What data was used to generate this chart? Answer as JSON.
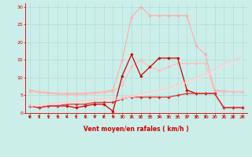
{
  "x": [
    0,
    1,
    2,
    3,
    4,
    5,
    6,
    7,
    8,
    9,
    10,
    11,
    12,
    13,
    14,
    15,
    16,
    17,
    18,
    19,
    20,
    21,
    22,
    23
  ],
  "series": [
    {
      "name": "light_pink_upper",
      "color": "#ffaaaa",
      "linewidth": 0.8,
      "marker": "D",
      "markersize": 1.8,
      "values": [
        6.5,
        6.0,
        5.8,
        5.5,
        5.5,
        5.5,
        5.6,
        5.8,
        6.0,
        6.5,
        15.0,
        27.0,
        30.0,
        27.5,
        27.5,
        27.5,
        27.5,
        27.5,
        19.0,
        16.5,
        6.5,
        6.2,
        6.0,
        6.0
      ]
    },
    {
      "name": "light_pink_lower",
      "color": "#ffbbbb",
      "linewidth": 0.8,
      "marker": "D",
      "markersize": 1.8,
      "values": [
        6.0,
        5.8,
        5.5,
        5.3,
        5.2,
        5.2,
        5.3,
        5.5,
        5.8,
        6.0,
        8.0,
        13.0,
        15.0,
        13.0,
        12.0,
        13.0,
        14.0,
        14.0,
        14.0,
        14.0,
        6.0,
        6.0,
        6.0,
        6.0
      ]
    },
    {
      "name": "red_upper",
      "color": "#cc0000",
      "linewidth": 0.9,
      "marker": "D",
      "markersize": 1.8,
      "values": [
        2.0,
        1.5,
        2.0,
        2.0,
        2.0,
        1.5,
        2.0,
        2.5,
        2.5,
        0.5,
        10.5,
        16.5,
        10.5,
        13.0,
        15.5,
        15.5,
        15.5,
        6.5,
        5.5,
        5.5,
        5.5,
        1.5,
        1.5,
        1.5
      ]
    },
    {
      "name": "red_lower",
      "color": "#dd3333",
      "linewidth": 0.9,
      "marker": "D",
      "markersize": 1.8,
      "values": [
        2.0,
        1.5,
        2.0,
        2.0,
        2.5,
        2.5,
        2.5,
        3.0,
        3.0,
        3.0,
        4.0,
        4.5,
        4.5,
        4.5,
        4.5,
        4.5,
        5.0,
        5.5,
        5.5,
        5.5,
        5.5,
        1.5,
        1.5,
        1.5
      ]
    },
    {
      "name": "diagonal_line1",
      "color": "#ffcccc",
      "linewidth": 0.8,
      "marker": null,
      "markersize": 0,
      "values": [
        2.0,
        2.2,
        2.5,
        2.8,
        3.0,
        3.3,
        3.5,
        3.8,
        4.0,
        4.3,
        4.5,
        5.0,
        5.5,
        6.0,
        6.5,
        7.0,
        8.0,
        9.0,
        10.0,
        11.0,
        12.5,
        14.0,
        15.0,
        16.0
      ]
    },
    {
      "name": "diagonal_line2",
      "color": "#ffdddd",
      "linewidth": 0.8,
      "marker": null,
      "markersize": 0,
      "values": [
        2.0,
        2.1,
        2.3,
        2.5,
        2.7,
        2.9,
        3.1,
        3.3,
        3.5,
        3.7,
        4.0,
        4.5,
        5.0,
        5.5,
        6.0,
        6.5,
        7.5,
        8.5,
        9.5,
        10.5,
        11.5,
        13.0,
        14.0,
        15.0
      ]
    }
  ],
  "xlabel": "Vent moyen/en rafales ( km/h )",
  "ylim": [
    0,
    31
  ],
  "xlim": [
    -0.5,
    23.5
  ],
  "yticks": [
    0,
    5,
    10,
    15,
    20,
    25,
    30
  ],
  "xticks": [
    0,
    1,
    2,
    3,
    4,
    5,
    6,
    7,
    8,
    9,
    10,
    11,
    12,
    13,
    14,
    15,
    16,
    17,
    18,
    19,
    20,
    21,
    22,
    23
  ],
  "bg_color": "#cceee8",
  "grid_color": "#aadddd",
  "tick_color": "#cc0000",
  "label_color": "#cc0000",
  "axis_color": "#cc0000",
  "arrow_color": "#cc0000",
  "xlabel_fontsize": 5.5,
  "tick_fontsize": 4.5
}
